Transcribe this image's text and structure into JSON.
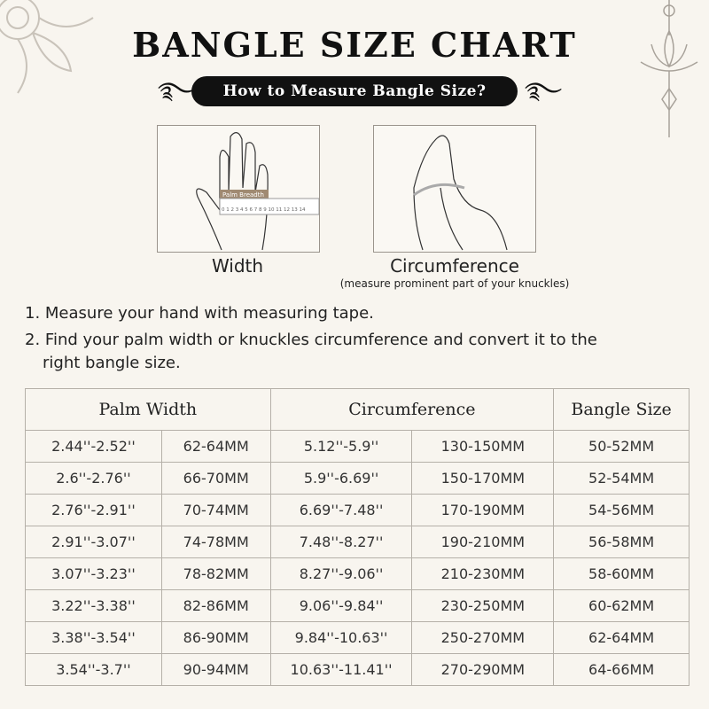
{
  "title": "BANGLE SIZE CHART",
  "banner": "How to Measure Bangle Size?",
  "illustrations": [
    {
      "caption": "Width",
      "label": "Palm Breadth",
      "ruler": "0 1 2 3 4 5 6 7 8 9 10 11 12 13 14"
    },
    {
      "caption": "Circumference",
      "note": "(measure prominent part of your knuckles)"
    }
  ],
  "instructions": [
    "1. Measure your hand with measuring tape.",
    "2. Find your palm width or knuckles circumference and convert it to the",
    "right bangle size."
  ],
  "table": {
    "headers": [
      "Palm Width",
      "Circumference",
      "Bangle Size"
    ],
    "rows": [
      [
        "2.44''-2.52''",
        "62-64MM",
        "5.12''-5.9''",
        "130-150MM",
        "50-52MM"
      ],
      [
        "2.6''-2.76''",
        "66-70MM",
        "5.9''-6.69''",
        "150-170MM",
        "52-54MM"
      ],
      [
        "2.76''-2.91''",
        "70-74MM",
        "6.69''-7.48''",
        "170-190MM",
        "54-56MM"
      ],
      [
        "2.91''-3.07''",
        "74-78MM",
        "7.48''-8.27''",
        "190-210MM",
        "56-58MM"
      ],
      [
        "3.07''-3.23''",
        "78-82MM",
        "8.27''-9.06''",
        "210-230MM",
        "58-60MM"
      ],
      [
        "3.22''-3.38''",
        "82-86MM",
        "9.06''-9.84''",
        "230-250MM",
        "60-62MM"
      ],
      [
        "3.38''-3.54''",
        "86-90MM",
        "9.84''-10.63''",
        "250-270MM",
        "62-64MM"
      ],
      [
        "3.54''-3.7''",
        "90-94MM",
        "10.63''-11.41''",
        "270-290MM",
        "64-66MM"
      ]
    ]
  }
}
